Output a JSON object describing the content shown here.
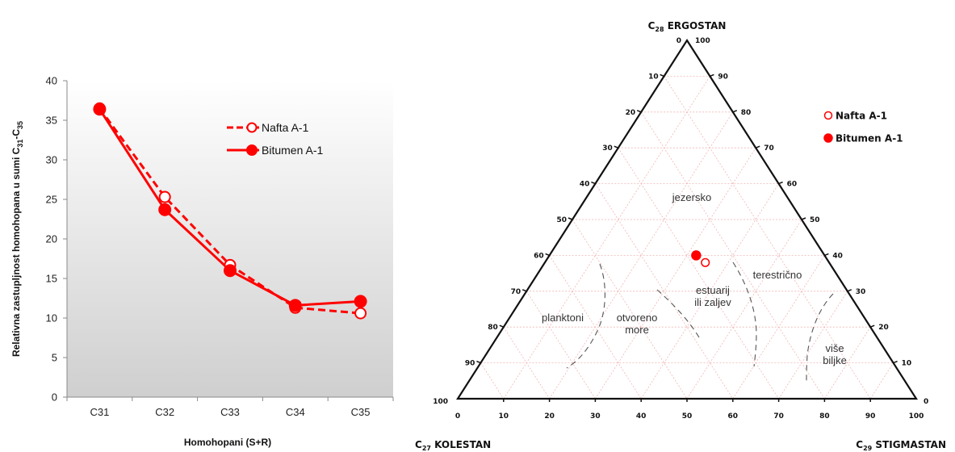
{
  "chart_data": [
    {
      "type": "line",
      "xlabel": "Homohopani (S+R)",
      "ylabel_parts": [
        "Relativna zastupljnost homohopana u sumi C",
        "31",
        "-C",
        "35"
      ],
      "categories": [
        "C31",
        "C32",
        "C33",
        "C34",
        "C35"
      ],
      "ylim": [
        0,
        40
      ],
      "yticks": [
        0,
        5,
        10,
        15,
        20,
        25,
        30,
        35,
        40
      ],
      "grid": false,
      "legend_position": "top-right",
      "series": [
        {
          "name": "Nafta A-1",
          "values": [
            36.5,
            25.3,
            16.7,
            11.3,
            10.6
          ],
          "color": "#ff0000",
          "line_style": "dashed",
          "marker": "open-circle"
        },
        {
          "name": "Bitumen A-1",
          "values": [
            36.4,
            23.7,
            16.0,
            11.6,
            12.1
          ],
          "color": "#ff0000",
          "line_style": "solid",
          "marker": "filled-circle"
        }
      ]
    },
    {
      "type": "scatter",
      "subtype": "ternary",
      "corners": {
        "top": {
          "prefix": "C",
          "sub": "28",
          "name": "ERGOSTAN"
        },
        "left": {
          "prefix": "C",
          "sub": "27",
          "name": "KOLESTAN"
        },
        "right": {
          "prefix": "C",
          "sub": "29",
          "name": "STIGMASTAN"
        }
      },
      "tick_values": [
        0,
        10,
        20,
        30,
        40,
        50,
        60,
        70,
        80,
        90,
        100
      ],
      "grid": true,
      "legend_position": "top-right",
      "regions": [
        "jezersko",
        "terestrično",
        "planktoni",
        "otvoreno more",
        "estuarij ili zaljev",
        "više biljke"
      ],
      "series": [
        {
          "name": "Nafta A-1",
          "color": "#ff0000",
          "marker": "open-circle",
          "points": [
            {
              "C27": 27,
              "C28": 38,
              "C29": 35
            }
          ]
        },
        {
          "name": "Bitumen A-1",
          "color": "#ff0000",
          "marker": "filled-circle",
          "points": [
            {
              "C27": 28,
              "C28": 40,
              "C29": 32
            }
          ]
        }
      ]
    }
  ]
}
